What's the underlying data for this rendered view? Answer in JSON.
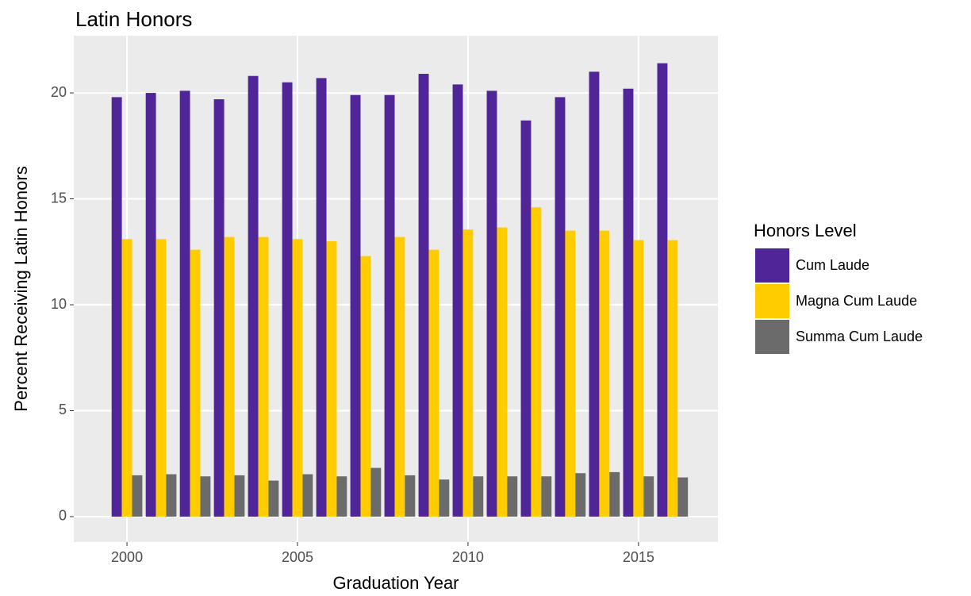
{
  "chart_data": {
    "type": "bar",
    "title": "Latin Honors",
    "x_label": "Graduation Year",
    "y_label": "Percent Receiving Latin Honors",
    "legend_title": "Honors Level",
    "x": [
      2000,
      2001,
      2002,
      2003,
      2004,
      2005,
      2006,
      2007,
      2008,
      2009,
      2010,
      2011,
      2012,
      2013,
      2014,
      2015,
      2016
    ],
    "series": [
      {
        "name": "Cum Laude",
        "color": "#4f2597",
        "values": [
          19.8,
          20.0,
          20.1,
          19.7,
          20.8,
          20.5,
          20.7,
          19.9,
          19.9,
          20.9,
          20.4,
          20.1,
          18.7,
          19.8,
          21.0,
          20.2,
          21.4
        ]
      },
      {
        "name": "Magna Cum Laude",
        "color": "#ffcc00",
        "values": [
          13.1,
          13.1,
          12.6,
          13.2,
          13.2,
          13.1,
          13.0,
          12.3,
          13.2,
          12.6,
          13.55,
          13.65,
          14.6,
          13.5,
          13.5,
          13.05,
          13.05
        ]
      },
      {
        "name": "Summa Cum Laude",
        "color": "#6b6b6b",
        "values": [
          1.95,
          2.0,
          1.9,
          1.95,
          1.7,
          2.0,
          1.9,
          2.3,
          1.95,
          1.75,
          1.9,
          1.9,
          1.9,
          2.05,
          2.1,
          1.9,
          1.85
        ]
      }
    ],
    "xlim": [
      1998.44,
      2017.33
    ],
    "xticks": [
      2000,
      2005,
      2010,
      2015
    ],
    "ylim": [
      -1.2,
      22.7
    ],
    "yticks": [
      0,
      5,
      10,
      15,
      20
    ],
    "grid": true,
    "legend_position": "right"
  }
}
